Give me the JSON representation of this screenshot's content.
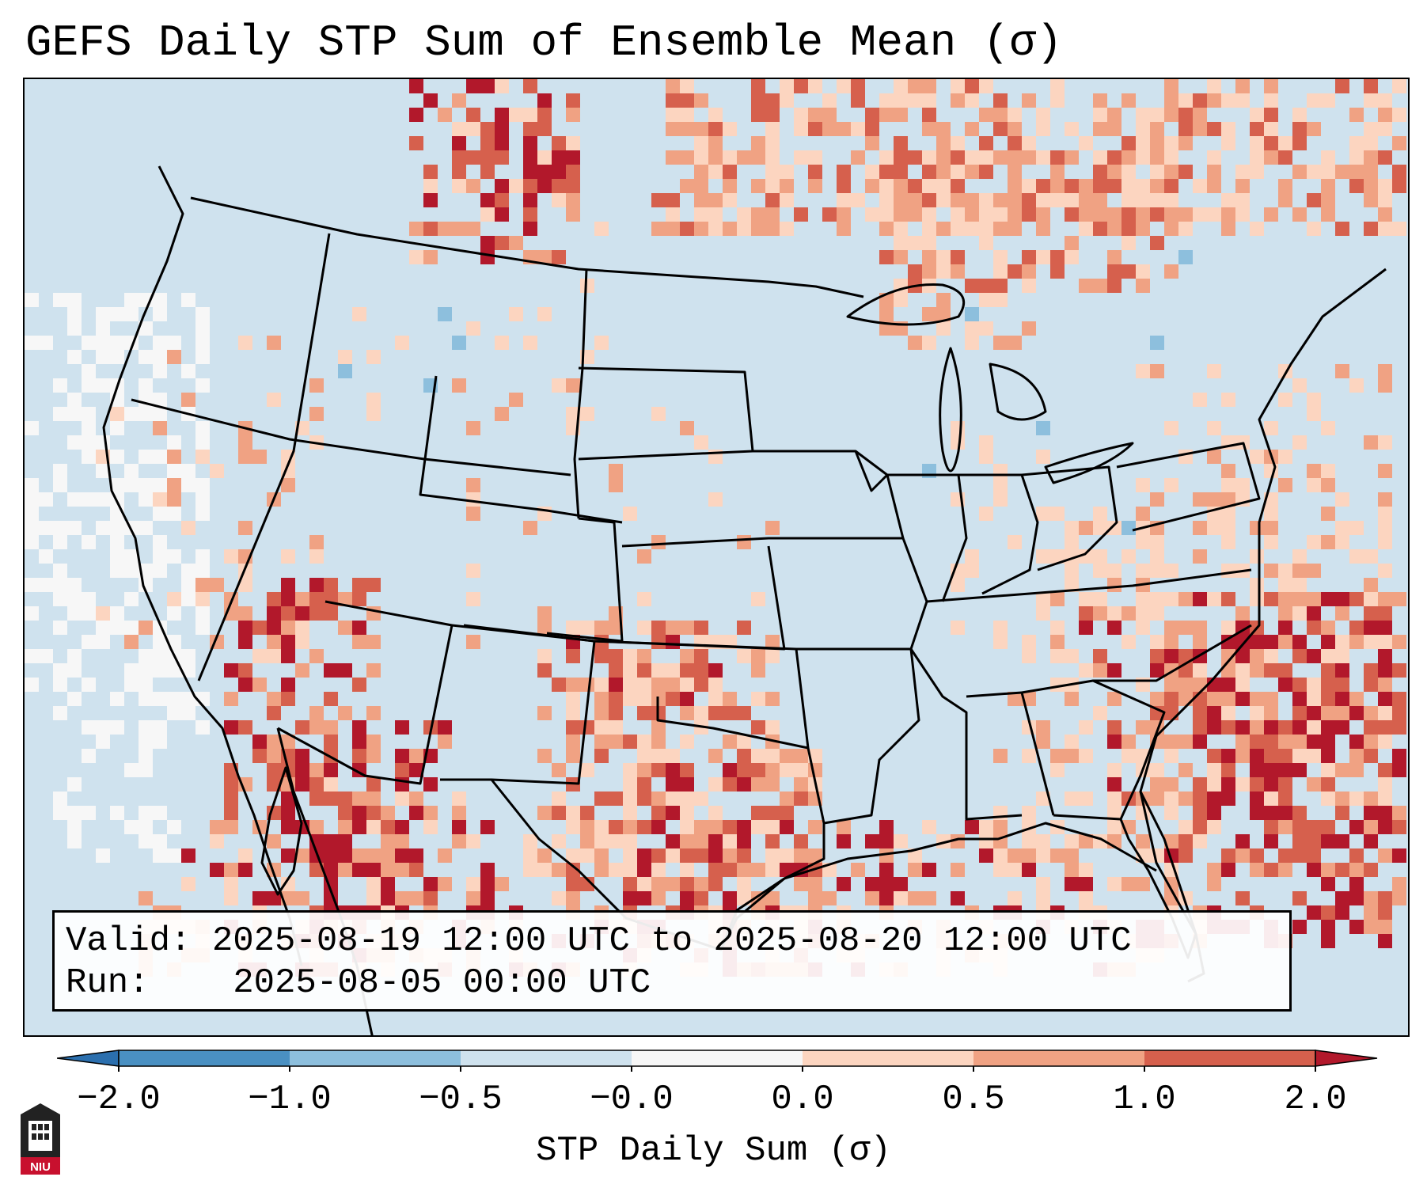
{
  "title": "GEFS Daily STP Sum of Ensemble Mean (σ)",
  "info": {
    "valid_label": "Valid:",
    "valid_value": "2025-08-19 12:00 UTC to 2025-08-20 12:00 UTC",
    "run_label": "Run:",
    "run_value": "2025-08-05 00:00 UTC"
  },
  "colorbar": {
    "label": "STP Daily Sum (σ)",
    "ticks": [
      "−2.0",
      "−1.0",
      "−0.5",
      "−0.0",
      "0.0",
      "0.5",
      "1.0",
      "2.0"
    ],
    "bins": [
      {
        "from": -2.0,
        "to": -1.0,
        "color": "#4a90c2"
      },
      {
        "from": -1.0,
        "to": -0.5,
        "color": "#8dbfdd"
      },
      {
        "from": -0.5,
        "to": -0.0,
        "color": "#cfe2ee"
      },
      {
        "from": -0.0,
        "to": 0.0,
        "color": "#f7f7f7"
      },
      {
        "from": 0.0,
        "to": 0.5,
        "color": "#fcd5c0"
      },
      {
        "from": 0.5,
        "to": 1.0,
        "color": "#f0a283"
      },
      {
        "from": 1.0,
        "to": 2.0,
        "color": "#d6604d"
      }
    ],
    "under_color": "#2b6fae",
    "over_color": "#b2182b"
  },
  "logo": {
    "text": "NIU"
  }
}
